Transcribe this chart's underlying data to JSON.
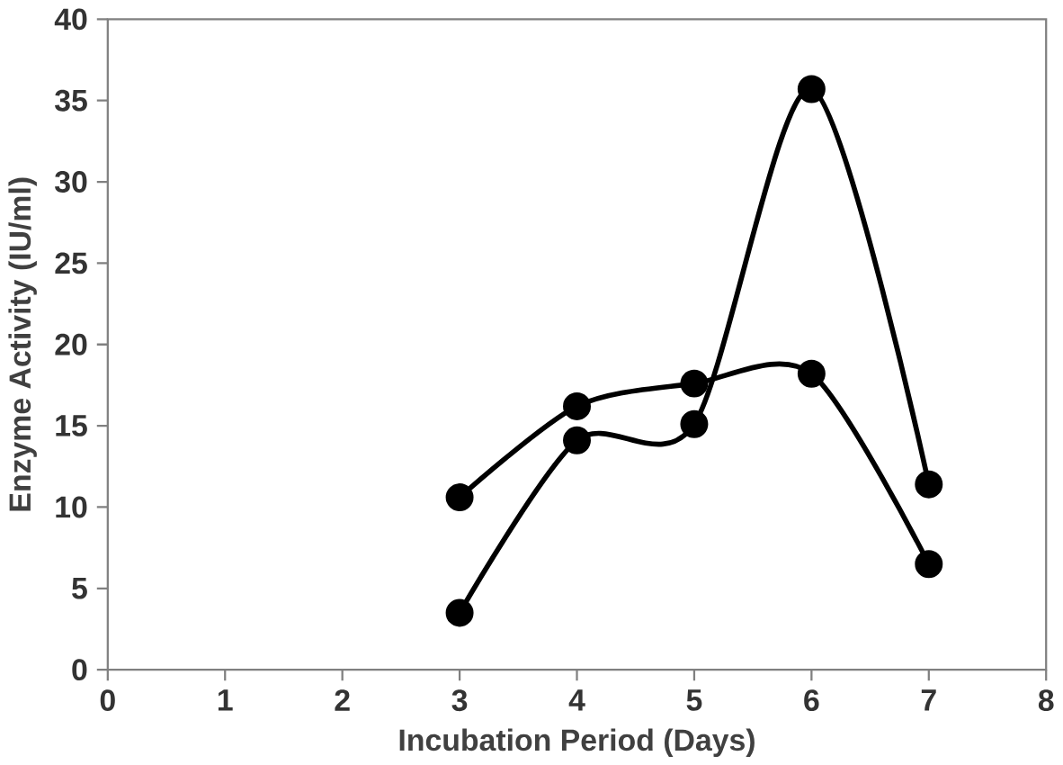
{
  "chart_data": {
    "type": "line",
    "xlabel": "Incubation Period (Days)",
    "ylabel": "Enzyme Activity (IU/ml)",
    "x": [
      3,
      4,
      5,
      6,
      7
    ],
    "series": [
      {
        "color": "#000000",
        "marker": "circle",
        "values": [
          10.6,
          16.2,
          17.6,
          18.2,
          6.5
        ]
      },
      {
        "color": "#000000",
        "marker": "circle",
        "values": [
          3.5,
          14.1,
          15.1,
          35.7,
          11.4
        ]
      }
    ],
    "xlim": [
      0,
      8
    ],
    "xticks": [
      0,
      1,
      2,
      3,
      4,
      5,
      6,
      7,
      8
    ],
    "ylim": [
      0,
      40
    ],
    "yticks": [
      0,
      5,
      10,
      15,
      20,
      25,
      30,
      35,
      40
    ],
    "line_style": "solid"
  }
}
